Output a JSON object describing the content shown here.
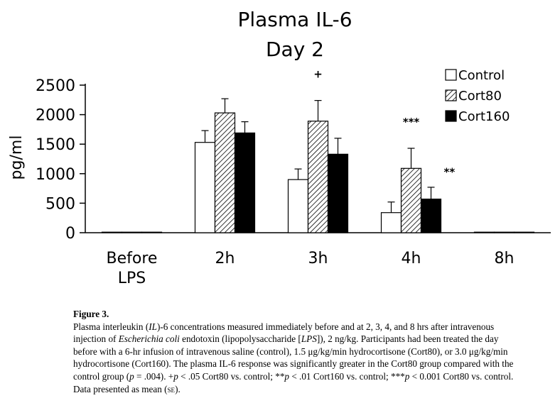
{
  "chart_data": {
    "type": "bar",
    "title": "Plasma IL-6",
    "subtitle": "Day 2",
    "xlabel": "",
    "ylabel": "pg/ml",
    "ylim": [
      0,
      2500
    ],
    "yticks": [
      0,
      500,
      1000,
      1500,
      2000,
      2500
    ],
    "categories": [
      "Before LPS",
      "2h",
      "3h",
      "4h",
      "8h"
    ],
    "series": [
      {
        "name": "Control",
        "fill": "#ffffff",
        "values": [
          0,
          1530,
          900,
          340,
          0
        ],
        "errors": [
          0,
          200,
          180,
          180,
          0
        ]
      },
      {
        "name": "Cort80",
        "fill": "hatch",
        "values": [
          0,
          2030,
          1890,
          1090,
          0
        ],
        "errors": [
          0,
          240,
          350,
          340,
          0
        ]
      },
      {
        "name": "Cort160",
        "fill": "#000000",
        "values": [
          0,
          1690,
          1330,
          570,
          0
        ],
        "errors": [
          0,
          190,
          270,
          200,
          0
        ]
      }
    ],
    "annotations": [
      {
        "text": "+",
        "category": "3h",
        "series": "Cort80"
      },
      {
        "text": "***",
        "category": "4h",
        "series": "Cort80"
      },
      {
        "text": "**",
        "category": "4h",
        "series": "Cort160"
      }
    ],
    "legend_position": "top-right"
  },
  "caption": {
    "figure_label": "Figure 3.",
    "p1": "Plasma interleukin (",
    "il": "IL",
    "p2": ")-6 concentrations measured immediately before and at 2, 3, 4, and 8 hrs after intravenous injection of ",
    "ecoli": "Escherichia coli",
    "p3": " endotoxin (lipopolysaccharide [",
    "lps": "LPS",
    "p4": "]), 2 ng/kg. Participants had been treated the day before with a 6-hr infusion of intravenous saline (control), 1.5 μg/kg/min hydrocortisone (Cort80), or 3.0 μg/kg/min hydrocortisone (Cort160). The plasma IL-6 response was significantly greater in the Cort80 group compared with the control group (",
    "p_a": "p",
    "p5": " = .004). +",
    "p_b": "p",
    "p6": " < .05 Cort80 vs. control; **",
    "p_c": "p",
    "p7": " < .01 Cort160 vs. control; ***",
    "p_d": "p",
    "p8": " < 0.001 Cort80 vs. control. Data presented as mean (",
    "se": "se",
    "p9": ")."
  }
}
